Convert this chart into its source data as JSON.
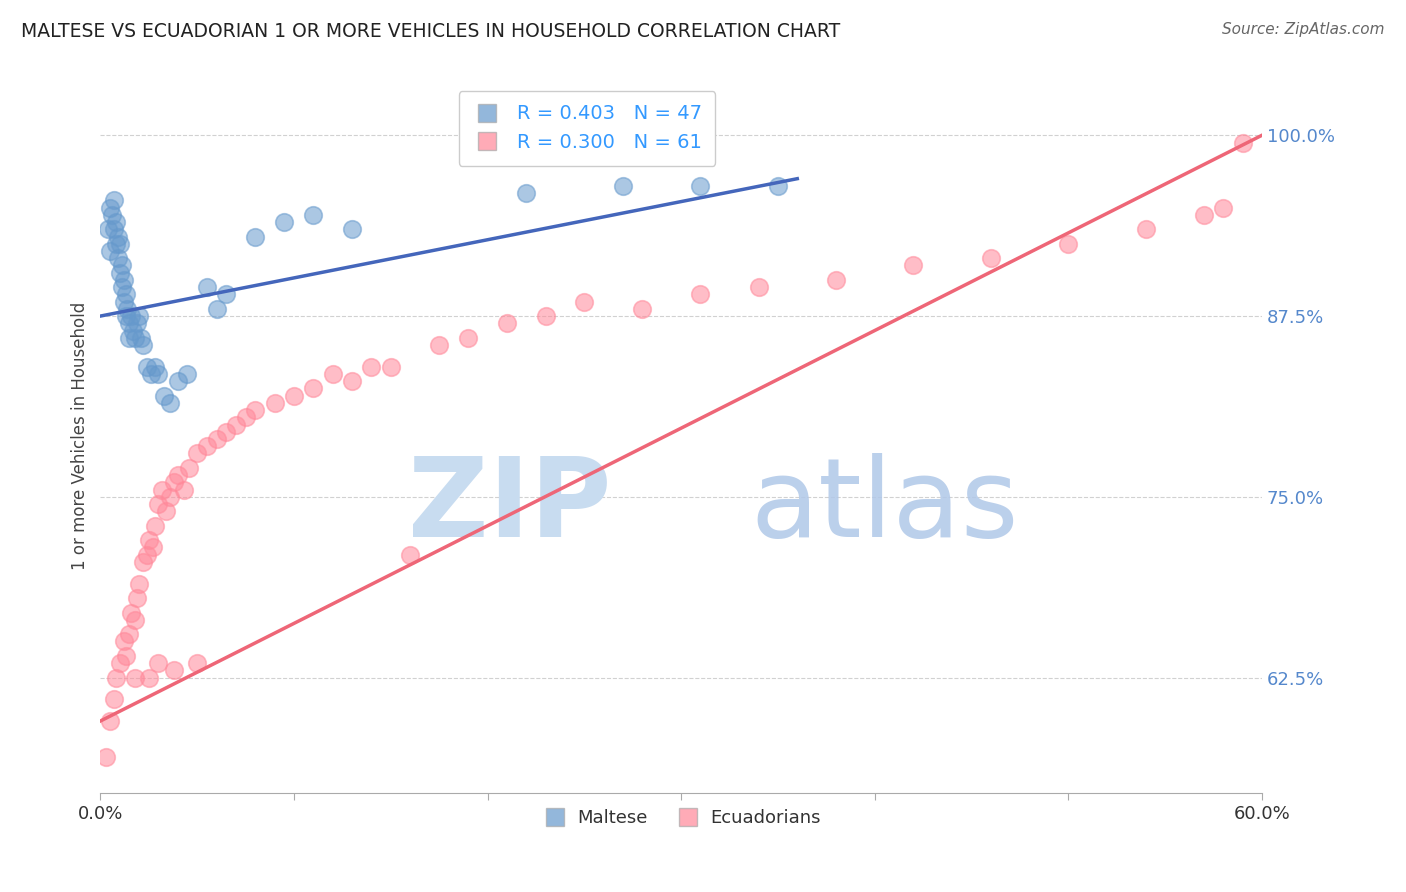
{
  "title": "MALTESE VS ECUADORIAN 1 OR MORE VEHICLES IN HOUSEHOLD CORRELATION CHART",
  "source": "Source: ZipAtlas.com",
  "ylabel": "1 or more Vehicles in Household",
  "ytick_labels": [
    "100.0%",
    "87.5%",
    "75.0%",
    "62.5%"
  ],
  "ytick_values": [
    1.0,
    0.875,
    0.75,
    0.625
  ],
  "xmin": 0.0,
  "xmax": 0.6,
  "ymin": 0.545,
  "ymax": 1.04,
  "maltese_R": 0.403,
  "maltese_N": 47,
  "ecuadorian_R": 0.3,
  "ecuadorian_N": 61,
  "maltese_color": "#6699CC",
  "ecuadorian_color": "#FF8899",
  "maltese_line_color": "#4466BB",
  "ecuadorian_line_color": "#EE6677",
  "background_color": "#FFFFFF",
  "grid_color": "#CCCCCC",
  "maltese_x": [
    0.004,
    0.005,
    0.005,
    0.006,
    0.007,
    0.007,
    0.008,
    0.008,
    0.009,
    0.009,
    0.01,
    0.01,
    0.011,
    0.011,
    0.012,
    0.012,
    0.013,
    0.013,
    0.014,
    0.015,
    0.015,
    0.016,
    0.017,
    0.018,
    0.019,
    0.02,
    0.021,
    0.022,
    0.024,
    0.026,
    0.028,
    0.03,
    0.033,
    0.036,
    0.04,
    0.045,
    0.055,
    0.06,
    0.065,
    0.08,
    0.095,
    0.11,
    0.13,
    0.22,
    0.27,
    0.31,
    0.35
  ],
  "maltese_y": [
    0.935,
    0.95,
    0.92,
    0.945,
    0.955,
    0.935,
    0.94,
    0.925,
    0.93,
    0.915,
    0.925,
    0.905,
    0.91,
    0.895,
    0.9,
    0.885,
    0.89,
    0.875,
    0.88,
    0.87,
    0.86,
    0.875,
    0.865,
    0.86,
    0.87,
    0.875,
    0.86,
    0.855,
    0.84,
    0.835,
    0.84,
    0.835,
    0.82,
    0.815,
    0.83,
    0.835,
    0.895,
    0.88,
    0.89,
    0.93,
    0.94,
    0.945,
    0.935,
    0.96,
    0.965,
    0.965,
    0.965
  ],
  "ecuadorian_x": [
    0.003,
    0.005,
    0.007,
    0.008,
    0.01,
    0.012,
    0.013,
    0.015,
    0.016,
    0.018,
    0.019,
    0.02,
    0.022,
    0.024,
    0.025,
    0.027,
    0.028,
    0.03,
    0.032,
    0.034,
    0.036,
    0.038,
    0.04,
    0.043,
    0.046,
    0.05,
    0.055,
    0.06,
    0.065,
    0.07,
    0.075,
    0.08,
    0.09,
    0.1,
    0.11,
    0.12,
    0.13,
    0.14,
    0.15,
    0.16,
    0.175,
    0.19,
    0.21,
    0.23,
    0.25,
    0.28,
    0.31,
    0.34,
    0.38,
    0.42,
    0.46,
    0.5,
    0.54,
    0.57,
    0.58,
    0.59,
    0.018,
    0.025,
    0.03,
    0.038,
    0.05
  ],
  "ecuadorian_y": [
    0.57,
    0.595,
    0.61,
    0.625,
    0.635,
    0.65,
    0.64,
    0.655,
    0.67,
    0.665,
    0.68,
    0.69,
    0.705,
    0.71,
    0.72,
    0.715,
    0.73,
    0.745,
    0.755,
    0.74,
    0.75,
    0.76,
    0.765,
    0.755,
    0.77,
    0.78,
    0.785,
    0.79,
    0.795,
    0.8,
    0.805,
    0.81,
    0.815,
    0.82,
    0.825,
    0.835,
    0.83,
    0.84,
    0.84,
    0.71,
    0.855,
    0.86,
    0.87,
    0.875,
    0.885,
    0.88,
    0.89,
    0.895,
    0.9,
    0.91,
    0.915,
    0.925,
    0.935,
    0.945,
    0.95,
    0.995,
    0.625,
    0.625,
    0.635,
    0.63,
    0.635
  ],
  "maltese_trendline_x": [
    0.0,
    0.36
  ],
  "maltese_trendline_y": [
    0.875,
    0.97
  ],
  "ecuadorian_trendline_x": [
    0.0,
    0.6
  ],
  "ecuadorian_trendline_y": [
    0.595,
    1.0
  ]
}
